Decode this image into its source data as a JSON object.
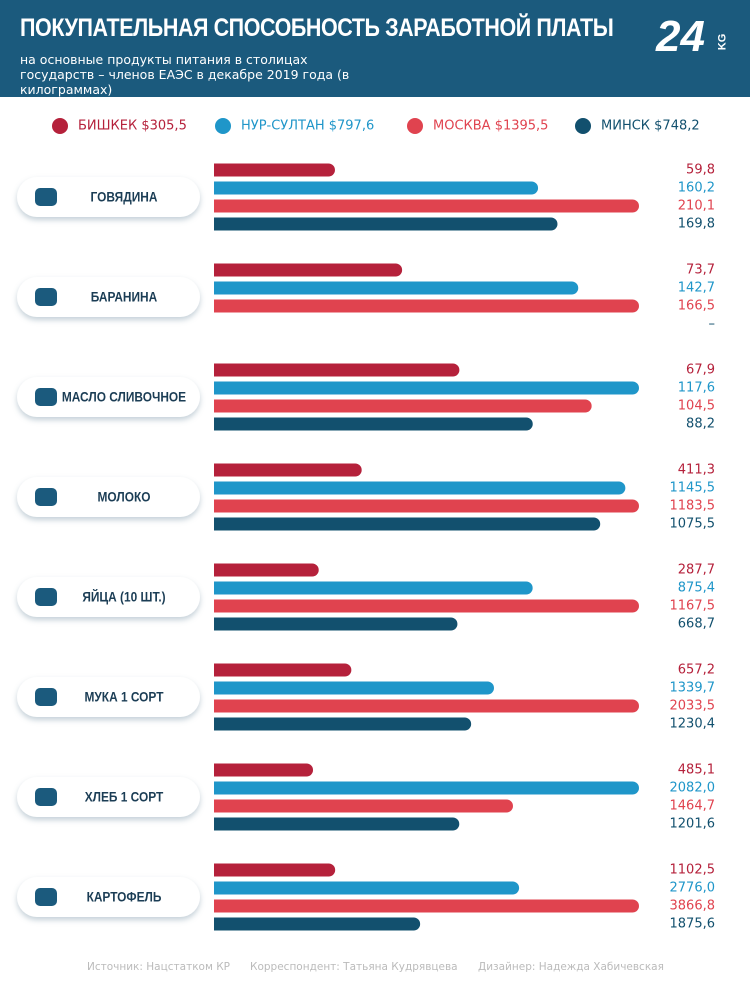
{
  "chart_data": {
    "type": "bar",
    "orientation": "horizontal",
    "title": "ПОКУПАТЕЛЬНАЯ СПОСОБНОСТЬ ЗАРАБОТНОЙ ПЛАТЫ",
    "subtitle": "на основные продукты питания в столицах государств – членов ЕАЭС в декабре 2019 года (в килограммах)",
    "logo": "24",
    "logo_sub": "KG",
    "categories": [
      "ГОВЯДИНА",
      "БАРАНИНА",
      "МАСЛО СЛИВОЧНОЕ",
      "МОЛОКО",
      "ЯЙЦА (10 ШТ.)",
      "МУКА 1 СОРТ",
      "ХЛЕБ 1 СОРТ",
      "КАРТОФЕЛЬ"
    ],
    "series": [
      {
        "name": "БИШКЕК $305,5",
        "color": "#b5213b",
        "values": [
          59.8,
          73.7,
          67.9,
          411.3,
          287.7,
          657.2,
          485.1,
          1102.5
        ],
        "value_labels": [
          "59,8",
          "73,7",
          "67,9",
          "411,3",
          "287,7",
          "657,2",
          "485,1",
          "1102,5"
        ]
      },
      {
        "name": "НУР-СУЛТАН $797,6",
        "color": "#1f96c9",
        "values": [
          160.2,
          142.7,
          117.6,
          1145.5,
          875.4,
          1339.7,
          2082.0,
          2776.0
        ],
        "value_labels": [
          "160,2",
          "142,7",
          "117,6",
          "1145,5",
          "875,4",
          "1339,7",
          "2082,0",
          "2776,0"
        ]
      },
      {
        "name": "МОСКВА $1395,5",
        "color": "#e0434f",
        "values": [
          210.1,
          166.5,
          104.5,
          1183.5,
          1167.5,
          2033.5,
          1464.7,
          3866.8
        ],
        "value_labels": [
          "210,1",
          "166,5",
          "104,5",
          "1183,5",
          "1167,5",
          "2033,5",
          "1464,7",
          "3866,8"
        ]
      },
      {
        "name": "МИНСК $748,2",
        "color": "#12506e",
        "values": [
          169.8,
          null,
          88.2,
          1075.5,
          668.7,
          1230.4,
          1201.6,
          1875.6
        ],
        "value_labels": [
          "169,8",
          "–",
          "88,2",
          "1075,5",
          "668,7",
          "1230,4",
          "1201,6",
          "1875,6"
        ]
      }
    ],
    "footer": [
      "Источник: Нацстатком КР",
      "Корреспондент: Татьяна Кудрявцева",
      "Дизайнер: Надежда Хабичевская"
    ]
  }
}
